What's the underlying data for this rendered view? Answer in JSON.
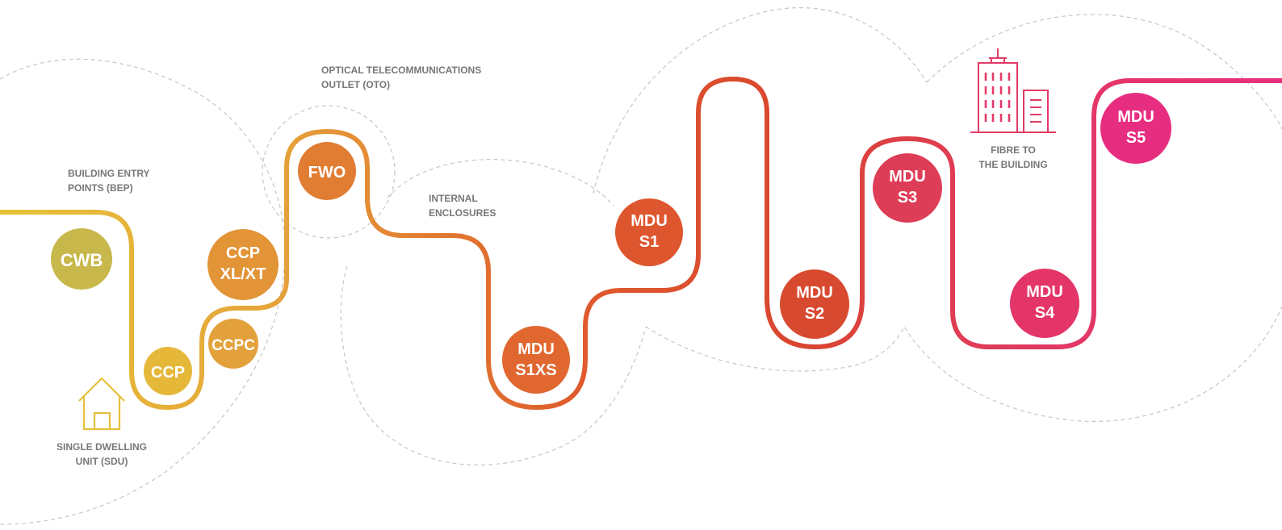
{
  "captions": {
    "oto": [
      "OPTICAL TELECOMMUNICATIONS",
      "OUTLET (OTO)"
    ],
    "bep": [
      "BUILDING ENTRY",
      "POINTS (BEP)"
    ],
    "internal": [
      "INTERNAL",
      "ENCLOSURES"
    ],
    "sdu": [
      "SINGLE DWELLING",
      "UNIT (SDU)"
    ],
    "fttb": [
      "FIBRE TO",
      "THE BUILDING"
    ]
  },
  "nodes": {
    "cwb": {
      "lines": [
        "CWB"
      ],
      "color": "#c8b84c"
    },
    "ccp": {
      "lines": [
        "CCP"
      ],
      "color": "#e6b83a"
    },
    "ccpc": {
      "lines": [
        "CCPC"
      ],
      "color": "#e2a13a"
    },
    "ccp_xl": {
      "lines": [
        "CCP",
        "XL/XT"
      ],
      "color": "#e29437"
    },
    "fwo": {
      "lines": [
        "FWO"
      ],
      "color": "#e17d33"
    },
    "mdu_s1xs": {
      "lines": [
        "MDU",
        "S1XS"
      ],
      "color": "#e0672f"
    },
    "mdu_s1": {
      "lines": [
        "MDU",
        "S1"
      ],
      "color": "#de562d"
    },
    "mdu_s2": {
      "lines": [
        "MDU",
        "S2"
      ],
      "color": "#d84a30"
    },
    "mdu_s3": {
      "lines": [
        "MDU",
        "S3"
      ],
      "color": "#de3d58"
    },
    "mdu_s4": {
      "lines": [
        "MDU",
        "S4"
      ],
      "color": "#e33568"
    },
    "mdu_s5": {
      "lines": [
        "MDU",
        "S5"
      ],
      "color": "#e62d80"
    }
  },
  "colors": {
    "path_start": "#e6c338",
    "path_mid": "#e0692c",
    "path_red": "#d9452f",
    "path_end": "#e8307f",
    "dash": "#c6c6c6",
    "caption": "#777777",
    "house_icon": "#e6bf3a",
    "building_icon": "#e23b67"
  },
  "icons": {
    "house": "house-icon",
    "building": "building-icon"
  }
}
